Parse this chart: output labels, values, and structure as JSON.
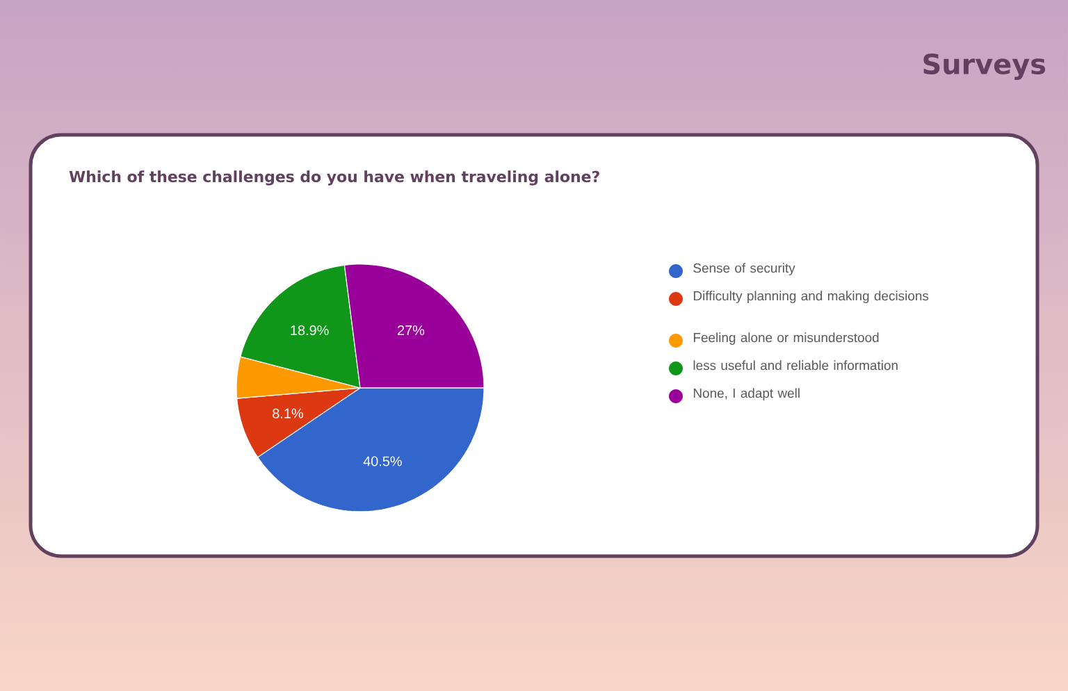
{
  "chart_data": {
    "type": "pie",
    "title": "Surveys",
    "subtitle": "Which of these challenges do you have when traveling alone?",
    "categories": [
      "Sense of security",
      "Difficulty planning and making decisions",
      "Feeling alone or misunderstood",
      "less useful and reliable information",
      "None, I adapt well"
    ],
    "values": [
      40.5,
      8.1,
      5.4,
      18.9,
      27
    ],
    "colors": [
      "#3366cc",
      "#dc3912",
      "#ff9900",
      "#109618",
      "#990099"
    ],
    "value_labels": [
      "40.5%",
      "8.1%",
      null,
      "18.9%",
      "27%"
    ],
    "legend": "right"
  }
}
